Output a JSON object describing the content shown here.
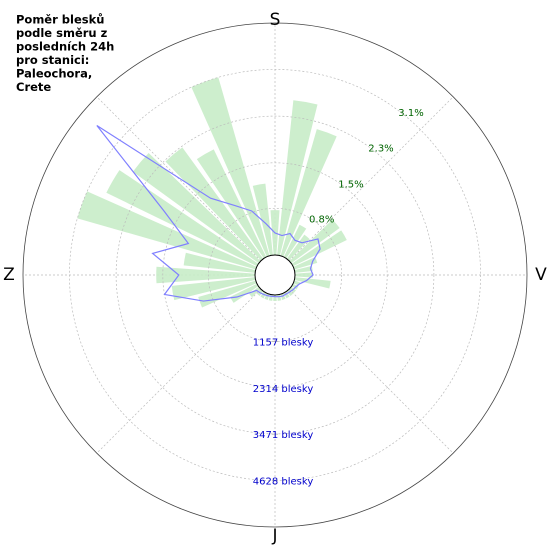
{
  "chart_data": {
    "type": "polar",
    "title_lines": [
      "Poměr blesků",
      "podle směru z",
      "posledních 24h",
      "pro stanici:",
      "Paleochora,",
      "Crete"
    ],
    "x": [
      0,
      10,
      20,
      30,
      40,
      50,
      60,
      70,
      80,
      90,
      100,
      110,
      120,
      130,
      140,
      150,
      160,
      170,
      180,
      190,
      200,
      210,
      220,
      230,
      240,
      250,
      260,
      270,
      280,
      290,
      300,
      310,
      320,
      330,
      340,
      350
    ],
    "xlim": [
      0,
      360
    ],
    "xticks": [
      {
        "value": 0,
        "label": "S"
      },
      {
        "value": 90,
        "label": "V"
      },
      {
        "value": 180,
        "label": "J"
      },
      {
        "value": 270,
        "label": "Z"
      }
    ],
    "ylim": [
      0,
      3.875
    ],
    "yticks": [
      {
        "value": 0.78,
        "label": "0.8%"
      },
      {
        "value": 1.54,
        "label": "1.5%"
      },
      {
        "value": 2.32,
        "label": "2.3%"
      },
      {
        "value": 3.1,
        "label": "3.1%"
      }
    ],
    "y2lim": [
      0,
      5785
    ],
    "y2ticks": [
      {
        "value": 1157,
        "label": "1157 blesky"
      },
      {
        "value": 2314,
        "label": "2314 blesky"
      },
      {
        "value": 3471,
        "label": "3471 blesky"
      },
      {
        "value": 4628,
        "label": "4628 blesky"
      }
    ],
    "series": [
      {
        "color": "#c8ecc8",
        "values": [
          0.75,
          2.6,
          2.2,
          0.6,
          0.5,
          1.0,
          1.0,
          0.4,
          0.3,
          0.3,
          0.6,
          0.1,
          0.1,
          0.1,
          0.1,
          0.1,
          0.1,
          0.1,
          0.1,
          0.1,
          0.1,
          0.1,
          0.1,
          0.2,
          0.5,
          1.0,
          1.4,
          1.65,
          1.2,
          3.1,
          2.8,
          2.6,
          2.3,
          2.0,
          3.1,
          1.2
        ]
      },
      {
        "color": "#8080ff",
        "axis": "y2",
        "values": [
          550,
          500,
          600,
          500,
          550,
          900,
          800,
          500,
          400,
          450,
          300,
          150,
          100,
          80,
          60,
          50,
          60,
          50,
          40,
          40,
          50,
          60,
          80,
          100,
          600,
          1400,
          2300,
          1900,
          2600,
          1800,
          2700,
          5300,
          2000,
          1500,
          1200,
          800
        ]
      }
    ]
  }
}
